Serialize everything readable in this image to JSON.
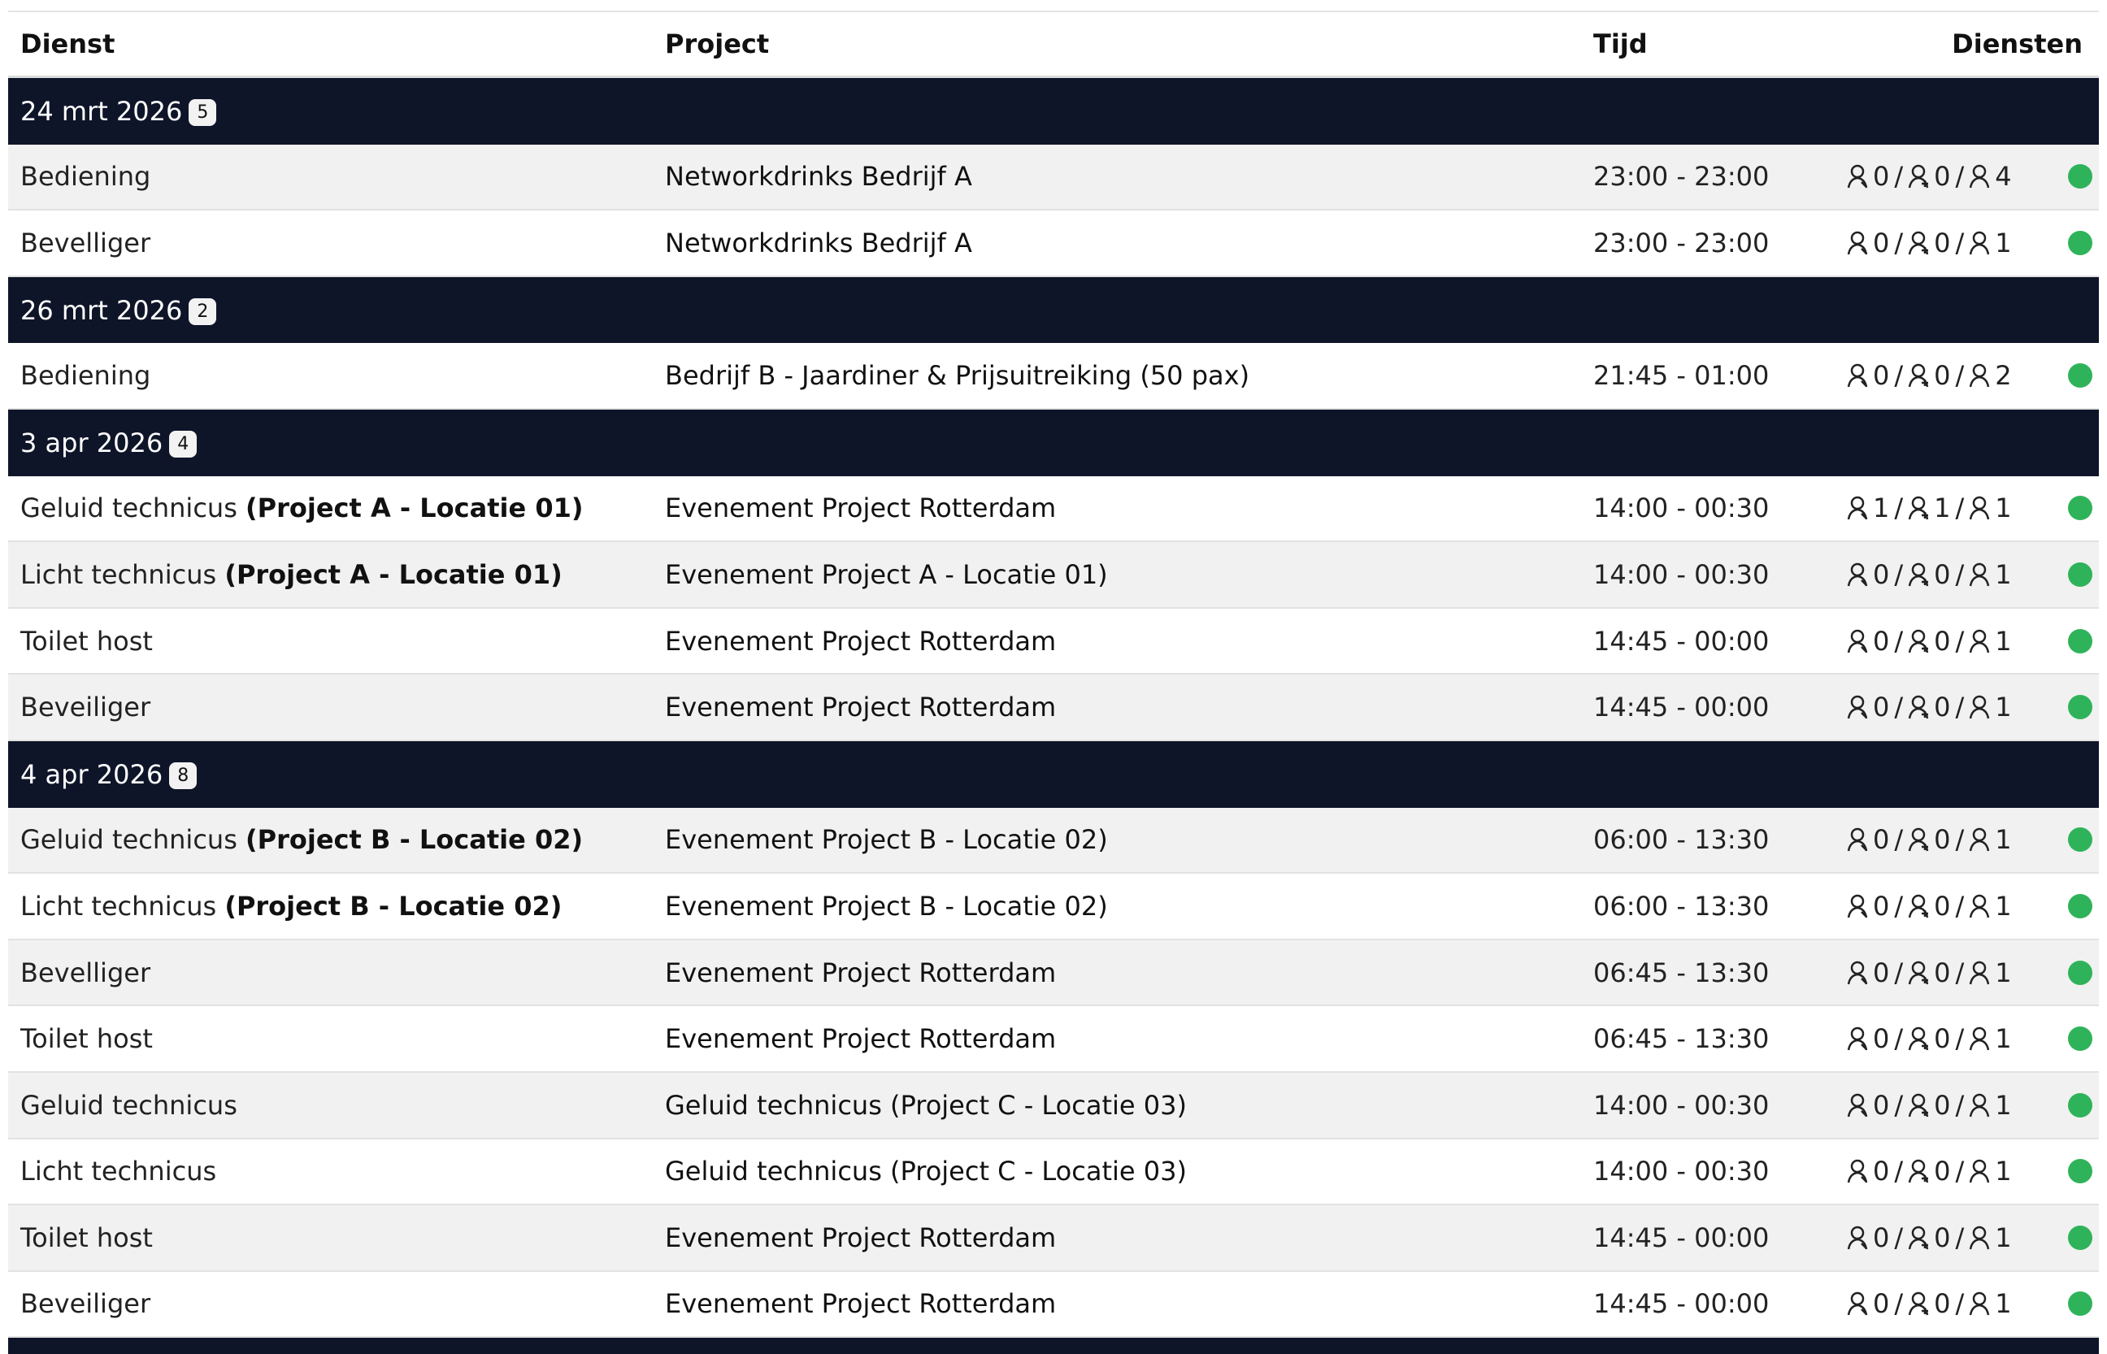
{
  "header": {
    "dienst": "Dienst",
    "project": "Project",
    "tijd": "Tijd",
    "diensten": "Diensten"
  },
  "status_color": "#2fb35a",
  "groups": [
    {
      "date": "24 mrt 2026",
      "badge": "5",
      "rows": [
        {
          "dienst": "Bediening",
          "project": "Networkdrinks Bedrijf A",
          "tijd": "23:00 - 23:00",
          "counts": [
            0,
            0,
            4
          ]
        },
        {
          "dienst": "Bevelliger",
          "project": "Networkdrinks Bedrijf A",
          "tijd": "23:00 - 23:00",
          "counts": [
            0,
            0,
            1
          ]
        }
      ]
    },
    {
      "date": "26 mrt 2026",
      "badge": "2",
      "rows": [
        {
          "dienst": "Bediening",
          "project": "Bedrijf B - Jaardiner & Prijsuitreiking (50 pax)",
          "tijd": "21:45 - 01:00",
          "counts": [
            0,
            0,
            2
          ]
        }
      ]
    },
    {
      "date": "3 apr 2026",
      "badge": "4",
      "rows": [
        {
          "dienst": "Geluid technicus",
          "detail": "(Project A - Locatie 01)",
          "project": "Evenement Project Rotterdam",
          "tijd": "14:00 - 00:30",
          "counts": [
            1,
            1,
            1
          ]
        },
        {
          "dienst": "Licht technicus",
          "detail": "(Project A - Locatie 01)",
          "project": "Evenement Project A - Locatie 01)",
          "tijd": "14:00 - 00:30",
          "counts": [
            0,
            0,
            1
          ]
        },
        {
          "dienst": "Toilet host",
          "project": "Evenement Project Rotterdam",
          "tijd": "14:45 - 00:00",
          "counts": [
            0,
            0,
            1
          ]
        },
        {
          "dienst": "Beveiliger",
          "project": "Evenement Project Rotterdam",
          "tijd": "14:45 - 00:00",
          "counts": [
            0,
            0,
            1
          ]
        }
      ]
    },
    {
      "date": "4 apr 2026",
      "badge": "8",
      "rows": [
        {
          "dienst": "Geluid technicus",
          "detail": "(Project B - Locatie 02)",
          "project": "Evenement Project B - Locatie 02)",
          "tijd": "06:00 - 13:30",
          "counts": [
            0,
            0,
            1
          ]
        },
        {
          "dienst": "Licht technicus",
          "detail": "(Project B - Locatie 02)",
          "project": "Evenement Project B - Locatie 02)",
          "tijd": "06:00 - 13:30",
          "counts": [
            0,
            0,
            1
          ]
        },
        {
          "dienst": "Bevelliger",
          "project": "Evenement Project Rotterdam",
          "tijd": "06:45 - 13:30",
          "counts": [
            0,
            0,
            1
          ]
        },
        {
          "dienst": "Toilet host",
          "project": "Evenement Project Rotterdam",
          "tijd": "06:45 - 13:30",
          "counts": [
            0,
            0,
            1
          ]
        },
        {
          "dienst": "Geluid technicus",
          "project": "Geluid technicus (Project C - Locatie 03)",
          "tijd": "14:00 - 00:30",
          "counts": [
            0,
            0,
            1
          ]
        },
        {
          "dienst": "Licht technicus",
          "project": "Geluid technicus (Project C - Locatie 03)",
          "tijd": "14:00 - 00:30",
          "counts": [
            0,
            0,
            1
          ]
        },
        {
          "dienst": "Toilet host",
          "project": "Evenement Project Rotterdam",
          "tijd": "14:45 - 00:00",
          "counts": [
            0,
            0,
            1
          ]
        },
        {
          "dienst": "Beveiliger",
          "project": "Evenement Project Rotterdam",
          "tijd": "14:45 - 00:00",
          "counts": [
            0,
            0,
            1
          ]
        }
      ]
    }
  ]
}
